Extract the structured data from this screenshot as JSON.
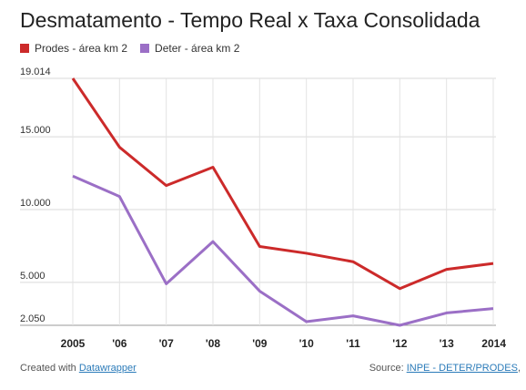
{
  "chart_data": {
    "type": "line",
    "title": "Desmatamento - Tempo Real x Taxa Consolidada",
    "categories": [
      "2005",
      "'06",
      "'07",
      "'08",
      "'09",
      "'10",
      "'11",
      "'12",
      "'13",
      "2014"
    ],
    "series": [
      {
        "name": "Prodes - área km 2",
        "color": "#cc2a2a",
        "values": [
          19014,
          14286,
          11651,
          12911,
          7464,
          7000,
          6418,
          4571,
          5891,
          6300
        ]
      },
      {
        "name": "Deter - área km 2",
        "color": "#9b6fc6",
        "values": [
          12300,
          10900,
          4900,
          7800,
          4400,
          2300,
          2700,
          2050,
          2900,
          3200
        ]
      }
    ],
    "y_ticks": [
      {
        "value": 2050,
        "label": "2.050"
      },
      {
        "value": 5000,
        "label": "5.000"
      },
      {
        "value": 10000,
        "label": "10.000"
      },
      {
        "value": 15000,
        "label": "15.000"
      },
      {
        "value": 19014,
        "label": "19.014"
      }
    ],
    "ylim": [
      2050,
      19014
    ],
    "xlabel": "",
    "ylabel": "",
    "grid": true,
    "legend_position": "top-left"
  },
  "footer": {
    "created_prefix": "Created with ",
    "created_link": "Datawrapper",
    "source_prefix": "Source: ",
    "source_link": "INPE - DETER/PRODES"
  }
}
